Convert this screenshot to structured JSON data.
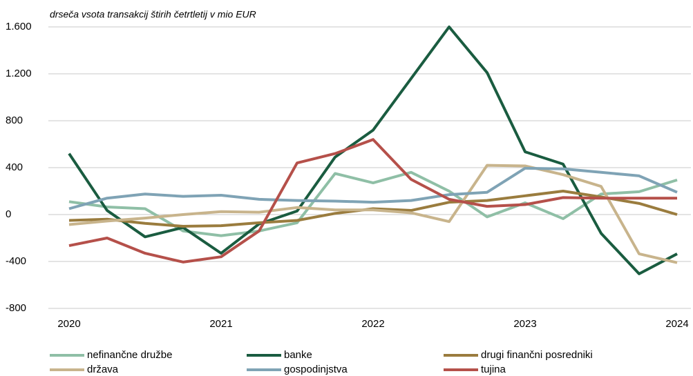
{
  "chart_data": {
    "type": "line",
    "subtitle": "drseča vsota transakcij štirih četrtletij v mio EUR",
    "categories": [
      "2020",
      null,
      null,
      null,
      "2021",
      null,
      null,
      null,
      "2022",
      null,
      null,
      null,
      "2023",
      null,
      null,
      null,
      "2024"
    ],
    "ylim": [
      -800,
      1600
    ],
    "yticks": [
      {
        "value": 1600,
        "label": "1.600"
      },
      {
        "value": 1200,
        "label": "1.200"
      },
      800,
      400,
      0,
      -400,
      -800
    ],
    "grid": true,
    "series": [
      {
        "name": "nefinančne družbe",
        "color": "#8fbfa6",
        "values": [
          110,
          65,
          50,
          -140,
          -180,
          -140,
          -70,
          350,
          270,
          360,
          200,
          -20,
          100,
          -35,
          175,
          195,
          295
        ]
      },
      {
        "name": "banke",
        "color": "#1a5c40",
        "values": [
          520,
          35,
          -190,
          -110,
          -330,
          -80,
          30,
          490,
          720,
          1160,
          1600,
          1210,
          535,
          430,
          -160,
          -505,
          -335
        ]
      },
      {
        "name": "drugi finančni posredniki",
        "color": "#9a7c3e",
        "values": [
          -50,
          -40,
          -75,
          -100,
          -95,
          -70,
          -50,
          10,
          50,
          35,
          105,
          120,
          160,
          200,
          150,
          95,
          0
        ]
      },
      {
        "name": "država",
        "color": "#c8b48c",
        "values": [
          -85,
          -55,
          -30,
          0,
          25,
          20,
          60,
          40,
          40,
          15,
          -60,
          420,
          415,
          340,
          240,
          -335,
          -410
        ]
      },
      {
        "name": "gospodinjstva",
        "color": "#7fa3b5",
        "values": [
          50,
          140,
          175,
          155,
          165,
          130,
          120,
          115,
          105,
          120,
          170,
          190,
          395,
          390,
          360,
          330,
          190
        ]
      },
      {
        "name": "tujina",
        "color": "#b5504a",
        "values": [
          -265,
          -200,
          -330,
          -405,
          -360,
          -140,
          440,
          520,
          640,
          300,
          130,
          70,
          85,
          145,
          140,
          140,
          140
        ]
      }
    ]
  }
}
